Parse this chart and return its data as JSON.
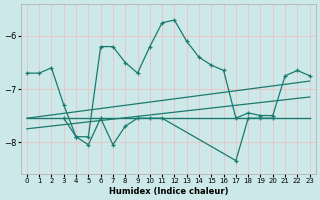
{
  "xlabel": "Humidex (Indice chaleur)",
  "bg_color": "#cce8e8",
  "grid_color": "#e8c8c8",
  "line_color": "#1a7a6e",
  "xlim": [
    -0.5,
    23.5
  ],
  "ylim": [
    -8.6,
    -5.4
  ],
  "yticks": [
    -8,
    -7,
    -6
  ],
  "xticks": [
    0,
    1,
    2,
    3,
    4,
    5,
    6,
    7,
    8,
    9,
    10,
    11,
    12,
    13,
    14,
    15,
    16,
    17,
    18,
    19,
    20,
    21,
    22,
    23
  ],
  "line1_x": [
    0,
    1,
    2,
    3,
    4,
    5,
    6,
    7,
    8,
    9,
    10,
    11,
    12,
    13,
    14,
    15,
    16,
    17,
    18,
    19,
    20,
    21,
    22,
    23
  ],
  "line1_y": [
    -6.7,
    -6.7,
    -6.6,
    -7.3,
    -7.9,
    -7.9,
    -6.2,
    -6.2,
    -6.5,
    -6.7,
    -6.2,
    -5.75,
    -5.7,
    -6.1,
    -6.4,
    -6.55,
    -6.65,
    -7.55,
    -7.45,
    -7.5,
    -7.5,
    -6.75,
    -6.65,
    -6.75
  ],
  "line2_x": [
    0,
    23
  ],
  "line2_y": [
    -7.55,
    -7.55
  ],
  "line3_x": [
    0,
    23
  ],
  "line3_y": [
    -7.75,
    -7.15
  ],
  "line4_x": [
    0,
    23
  ],
  "line4_y": [
    -7.55,
    -6.85
  ],
  "line5_x": [
    3,
    4,
    5,
    6,
    7,
    8,
    9,
    10,
    11,
    17,
    18,
    19,
    20
  ],
  "line5_y": [
    -7.55,
    -7.9,
    -8.05,
    -7.55,
    -8.05,
    -7.7,
    -7.55,
    -7.55,
    -7.55,
    -8.35,
    -7.55,
    -7.55,
    -7.55
  ]
}
